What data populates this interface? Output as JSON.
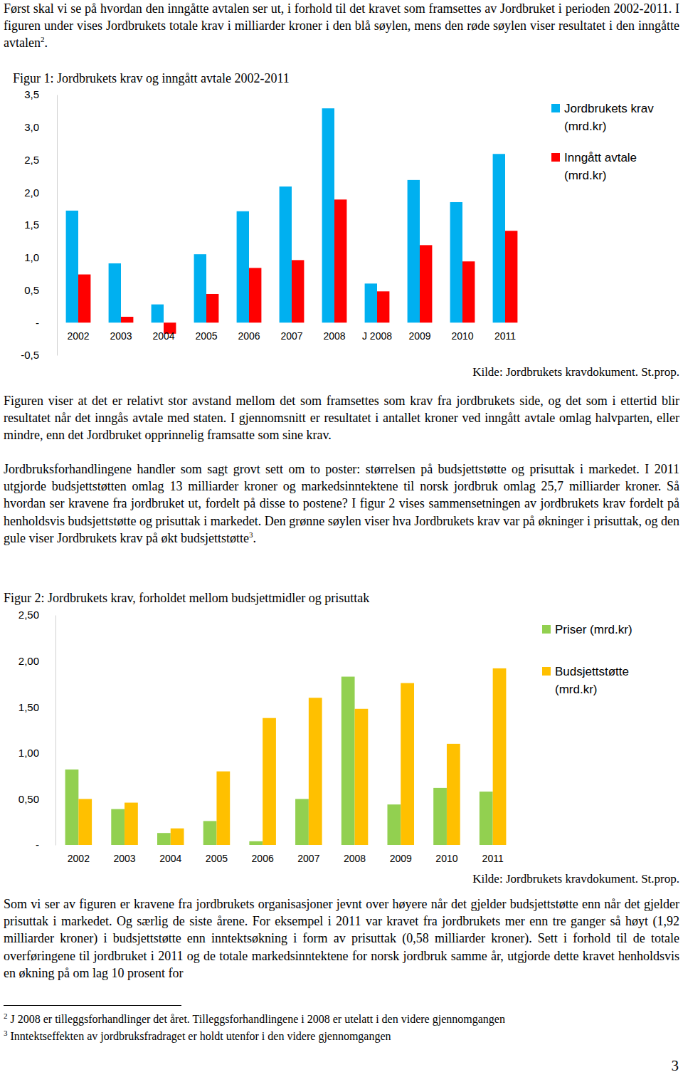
{
  "paragraphs": [
    [
      {
        "text": "Først skal vi se på hvordan den inngåtte avtalen ser ut, i forhold til det kravet som framsettes av Jordbruket i perioden 2002-2011. I figuren under vises Jordbrukets totale krav i milliarder kroner i den blå søylen, mens den røde søylen viser resultatet i den inngåtte avtalen"
      },
      {
        "sup": "2"
      },
      {
        "text": "."
      }
    ],
    [
      {
        "text": "Figuren viser at det er relativt stor avstand mellom det som framsettes som krav fra jordbrukets side, og det som i ettertid blir resultatet når det inngås avtale med staten. I gjennomsnitt er resultatet i antallet kroner ved inngått avtale omlag halvparten, eller mindre, enn det Jordbruket opprinnelig framsatte som sine krav."
      }
    ],
    [
      {
        "text": "Jordbruksforhandlingene handler som sagt grovt sett om to poster: størrelsen på budsjettstøtte og prisuttak i markedet. I 2011 utgjorde budsjettstøtten omlag 13 milliarder kroner og markedsinntektene til norsk jordbruk omlag 25,7 milliarder kroner. Så hvordan ser kravene fra jordbruket ut, fordelt på disse to postene? I figur 2 vises sammensetningen av jordbrukets krav fordelt på henholdsvis budsjettstøtte og prisuttak i markedet. Den grønne søylen viser hva Jordbrukets krav var på økninger i prisuttak, og den gule viser Jordbrukets krav på økt budsjettstøtte"
      },
      {
        "sup": "3"
      },
      {
        "text": "."
      }
    ],
    [
      {
        "text": "Som vi ser av figuren er kravene fra jordbrukets organisasjoner jevnt over høyere når det gjelder budsjettstøtte enn når det gjelder prisuttak i markedet. Og særlig de siste årene. For eksempel i 2011 var kravet fra jordbrukets mer enn tre ganger så høyt (1,92 milliarder kroner) i budsjettstøtte enn inntektsøkning i form av prisuttak (0,58 milliarder kroner). Sett i forhold til de totale overføringene til jordbruket i 2011 og de totale markedsinntektene for norsk jordbruk samme år, utgjorde dette kravet henholdsvis en økning på om lag 10 prosent for"
      }
    ]
  ],
  "chart_data": [
    {
      "type": "bar",
      "title": "Figur 1: Jordbrukets krav og inngått avtale 2002-2011",
      "categories": [
        "2002",
        "2003",
        "2004",
        "2005",
        "2006",
        "2007",
        "2008",
        "J 2008",
        "2009",
        "2010",
        "2011"
      ],
      "series": [
        {
          "name": "Jordbrukets krav (mrd.kr)",
          "color": "#00b0f0",
          "values": [
            1.72,
            0.91,
            0.28,
            1.05,
            1.71,
            2.09,
            3.29,
            0.6,
            2.19,
            1.85,
            2.59
          ]
        },
        {
          "name": "Inngått avtale (mrd.kr)",
          "color": "#ff0000",
          "values": [
            0.74,
            0.09,
            -0.17,
            0.44,
            0.84,
            0.96,
            1.89,
            0.48,
            1.19,
            0.94,
            1.41
          ]
        }
      ],
      "ylim": [
        -0.5,
        3.5
      ],
      "yticks": [
        {
          "value": -0.5,
          "label": "-0,5"
        },
        {
          "value": 0,
          "label": "-"
        },
        {
          "value": 0.5,
          "label": "0,5"
        },
        {
          "value": 1,
          "label": "1,0"
        },
        {
          "value": 1.5,
          "label": "1,5"
        },
        {
          "value": 2,
          "label": "2,0"
        },
        {
          "value": 2.5,
          "label": "2,5"
        },
        {
          "value": 3,
          "label": "3,0"
        },
        {
          "value": 3.5,
          "label": "3,5"
        }
      ],
      "legend": "right",
      "annotations": [
        "Kilde: Jordbrukets kravdokument. St.prop."
      ]
    },
    {
      "type": "bar",
      "title": "Figur 2: Jordbrukets krav, forholdet mellom budsjettmidler og prisuttak",
      "categories": [
        "2002",
        "2003",
        "2004",
        "2005",
        "2006",
        "2007",
        "2008",
        "2009",
        "2010",
        "2011"
      ],
      "series": [
        {
          "name": "Priser (mrd.kr)",
          "color": "#92d050",
          "values": [
            0.82,
            0.39,
            0.13,
            0.26,
            0.04,
            0.5,
            1.83,
            0.44,
            0.62,
            0.58
          ]
        },
        {
          "name": "Budsjettstøtte (mrd.kr)",
          "color": "#ffc000",
          "values": [
            0.5,
            0.46,
            0.18,
            0.8,
            1.38,
            1.6,
            1.48,
            1.76,
            1.1,
            1.92
          ]
        }
      ],
      "ylim": [
        0,
        2.5
      ],
      "yticks": [
        {
          "value": 0,
          "label": "-"
        },
        {
          "value": 0.5,
          "label": "0,50"
        },
        {
          "value": 1,
          "label": "1,00"
        },
        {
          "value": 1.5,
          "label": "1,50"
        },
        {
          "value": 2,
          "label": "2,00"
        },
        {
          "value": 2.5,
          "label": "2,50"
        }
      ],
      "legend": "right",
      "annotations": [
        "Kilde: Jordbrukets kravdokument. St.prop."
      ]
    }
  ],
  "footnotes": [
    {
      "marker": "2",
      "text": "J 2008 er tilleggsforhandlinger det året. Tilleggsforhandlingene i 2008 er utelatt i den videre gjennomgangen"
    },
    {
      "marker": "3",
      "text": "Inntektseffekten av jordbruksfradraget er holdt utenfor i den videre gjennomgangen"
    }
  ],
  "page_number": "3"
}
